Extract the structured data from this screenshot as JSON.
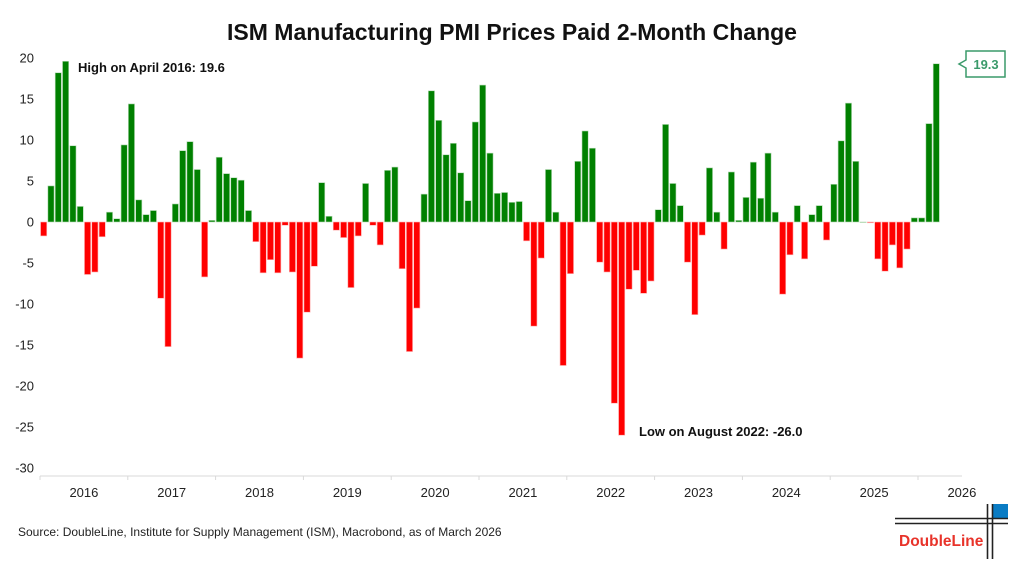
{
  "chart_data": {
    "type": "bar",
    "title": "ISM Manufacturing PMI Prices Paid 2-Month Change",
    "xlabel": "",
    "ylabel": "",
    "frequency": "monthly",
    "start": "2016-01",
    "end": "2026-03",
    "ylim": [
      -31,
      21
    ],
    "yticks": [
      20,
      15,
      10,
      5,
      0,
      -5,
      -10,
      -15,
      -20,
      -25,
      -30
    ],
    "xticks": [
      "2016",
      "2017",
      "2018",
      "2019",
      "2020",
      "2021",
      "2022",
      "2023",
      "2024",
      "2025",
      "2026"
    ],
    "grid": false,
    "legend": "none",
    "colors": {
      "positive": "#008000",
      "negative": "#ff0000"
    },
    "values": [
      -1.7,
      4.4,
      18.2,
      19.6,
      9.3,
      1.9,
      -6.4,
      -6.1,
      -1.8,
      1.2,
      0.4,
      9.4,
      14.4,
      2.7,
      0.9,
      1.4,
      -9.3,
      -15.2,
      2.2,
      8.7,
      9.8,
      6.4,
      -6.7,
      0.2,
      7.9,
      5.9,
      5.4,
      5.1,
      1.4,
      -2.4,
      -6.2,
      -4.6,
      -6.2,
      -0.4,
      -6.1,
      -16.6,
      -11.0,
      -5.4,
      4.8,
      0.7,
      -1.0,
      -1.9,
      -8.0,
      -1.7,
      4.7,
      -0.4,
      -2.8,
      6.3,
      6.7,
      -5.7,
      -15.8,
      -10.5,
      3.4,
      16.0,
      12.4,
      8.2,
      9.6,
      6.0,
      2.6,
      12.2,
      16.7,
      8.4,
      3.5,
      3.6,
      2.4,
      2.5,
      -2.3,
      -12.7,
      -4.4,
      6.4,
      1.2,
      -17.5,
      -6.3,
      7.4,
      11.1,
      9.0,
      -4.9,
      -6.1,
      -22.1,
      -26.0,
      -8.2,
      -5.9,
      -8.7,
      -7.2,
      1.5,
      11.9,
      4.7,
      2.0,
      -4.9,
      -11.3,
      -1.6,
      6.6,
      1.2,
      -3.3,
      6.1,
      0.2,
      3.0,
      7.3,
      2.9,
      8.4,
      1.2,
      -8.8,
      -4.0,
      2.0,
      -4.5,
      0.9,
      2.0,
      -2.2,
      4.6,
      9.9,
      14.5,
      7.4,
      0.0,
      -0.1,
      -4.5,
      -6.0,
      -2.8,
      -5.6,
      -3.3,
      0.5,
      0.5,
      12.0,
      19.3
    ],
    "annotations": {
      "high": "High on April 2016: 19.6",
      "low": "Low on August 2022: -26.0",
      "latest": "19.3"
    }
  },
  "footer": {
    "source": "Source: DoubleLine, Institute for Supply Management (ISM), Macrobond, as of March 2026",
    "logo_text": "DoubleLine",
    "logo_colors": {
      "text": "#e8332a",
      "square": "#0a7cc4"
    }
  }
}
